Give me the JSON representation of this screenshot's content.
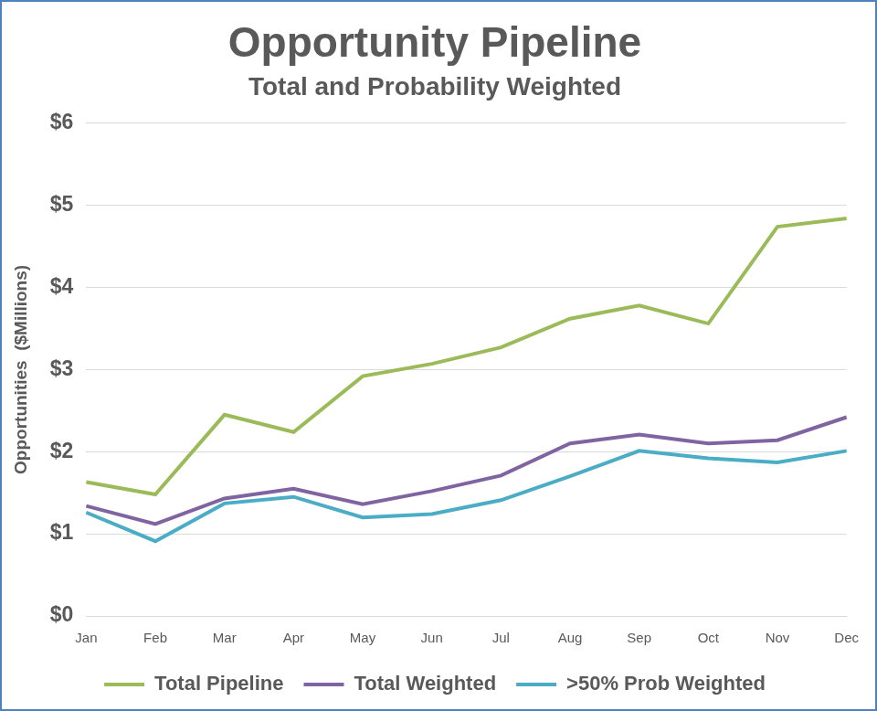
{
  "chart_data": {
    "type": "line",
    "title": "Opportunity Pipeline",
    "subtitle": "Total and Probability Weighted",
    "ylabel": "Opportunities  ($Millions)",
    "categories": [
      "Jan",
      "Feb",
      "Mar",
      "Apr",
      "May",
      "Jun",
      "Jul",
      "Aug",
      "Sep",
      "Oct",
      "Nov",
      "Dec"
    ],
    "series": [
      {
        "name": "Total Pipeline",
        "color": "#9bbb59",
        "values": [
          1.63,
          1.48,
          2.45,
          2.24,
          2.92,
          3.07,
          3.27,
          3.62,
          3.78,
          3.56,
          4.74,
          4.84
        ]
      },
      {
        "name": "Total Weighted",
        "color": "#8064a2",
        "values": [
          1.34,
          1.12,
          1.43,
          1.55,
          1.36,
          1.52,
          1.71,
          2.1,
          2.21,
          2.1,
          2.14,
          2.42
        ]
      },
      {
        "name": ">50% Prob Weighted",
        "color": "#4bacc6",
        "values": [
          1.26,
          0.91,
          1.37,
          1.45,
          1.2,
          1.24,
          1.41,
          1.7,
          2.01,
          1.92,
          1.87,
          2.01
        ]
      }
    ],
    "ylim": [
      0,
      6
    ],
    "yticks": [
      {
        "value": 0,
        "label": "$0"
      },
      {
        "value": 1,
        "label": "$1"
      },
      {
        "value": 2,
        "label": "$2"
      },
      {
        "value": 3,
        "label": "$3"
      },
      {
        "value": 4,
        "label": "$4"
      },
      {
        "value": 5,
        "label": "$5"
      },
      {
        "value": 6,
        "label": "$6"
      }
    ],
    "grid": true,
    "legend": "bottom"
  }
}
